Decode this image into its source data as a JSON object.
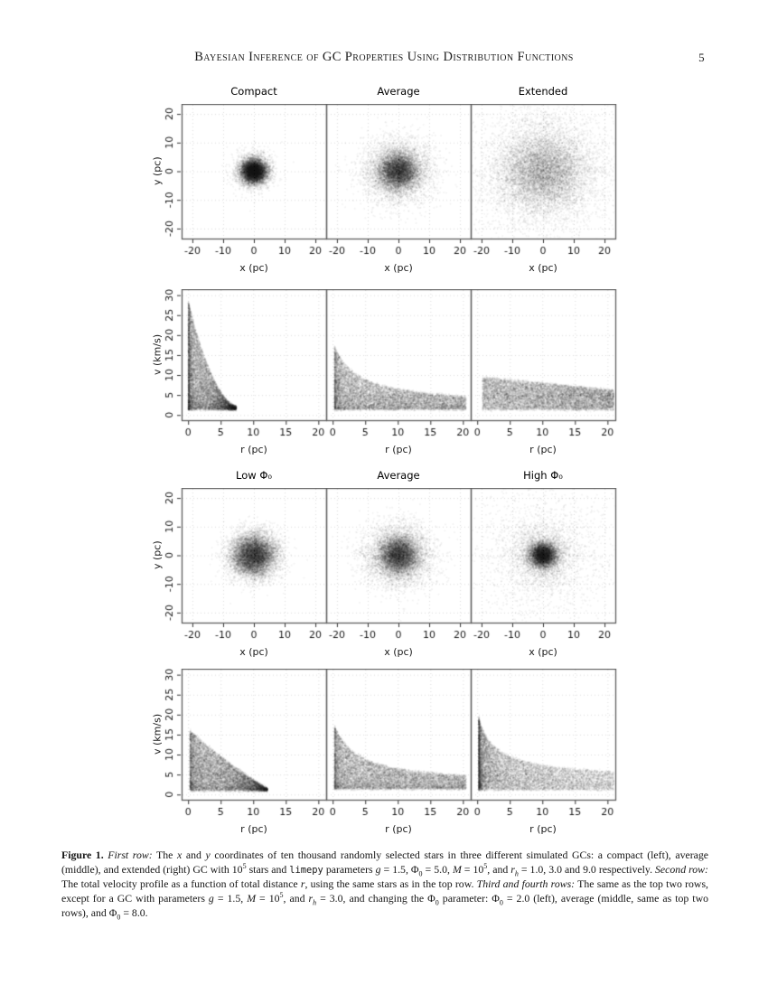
{
  "page": {
    "header": "Bayesian Inference of GC Properties Using Distribution Functions",
    "page_number": "5"
  },
  "colors": {
    "point_color": "#000000",
    "panel_border": "#5f5f5f",
    "grid": "#dcdcdc",
    "tick_text": "#191919"
  },
  "chart_data": [
    {
      "row": 1,
      "type": "scatter",
      "kind": "spatial",
      "titles": [
        "Compact",
        "Average",
        "Extended"
      ],
      "xlabel": "x (pc)",
      "ylabel": "y (pc)",
      "xlim": [
        -23.5,
        23.5
      ],
      "ylim": [
        -23.5,
        23.5
      ],
      "xticks": [
        -20,
        -10,
        0,
        10,
        20
      ],
      "yticks": [
        -20,
        -10,
        0,
        10,
        20
      ],
      "grid": true,
      "points_per_panel": 10000,
      "point_alpha": 0.05,
      "panels": [
        {
          "title": "Compact",
          "profile": {
            "sigmas": [
              1.9,
              3.0
            ],
            "weights": [
              0.75,
              0.25
            ]
          }
        },
        {
          "title": "Average",
          "profile": {
            "sigmas": [
              3.2,
              5.8
            ],
            "weights": [
              0.65,
              0.35
            ]
          }
        },
        {
          "title": "Extended",
          "profile": {
            "sigmas": [
              6.5,
              11.5
            ],
            "weights": [
              0.6,
              0.4
            ]
          }
        }
      ]
    },
    {
      "row": 2,
      "type": "scatter",
      "kind": "velocity",
      "titles": null,
      "xlabel": "r (pc)",
      "ylabel": "v (km/s)",
      "xlim": [
        -1.0,
        21.2
      ],
      "ylim": [
        -1.3,
        31.5
      ],
      "xticks": [
        0,
        5,
        10,
        15,
        20
      ],
      "yticks": [
        0,
        5,
        10,
        15,
        20,
        25,
        30
      ],
      "grid": true,
      "points_per_panel": 10000,
      "point_alpha": 0.05,
      "panels": [
        {
          "title": "Compact",
          "profile": {
            "env": "trunc",
            "vmax": 28.5,
            "vmin": 2.0,
            "rt": 7.8,
            "rmin": 0.05,
            "rmax": 7.4,
            "r_pow": 2.0,
            "env_pow": 1.9,
            "v_pow": 1.25,
            "vfloor": 1.4
          }
        },
        {
          "title": "Average",
          "profile": {
            "env": "hyper",
            "vmax": 18.5,
            "vmin": 2.4,
            "scale": 3.4,
            "rmin": 0.3,
            "rmax": 20.5,
            "r_pow": 1.7,
            "hp": 1.0,
            "v_pow": 1.2,
            "vfloor": 1.4
          }
        },
        {
          "title": "Extended",
          "profile": {
            "env": "trunc",
            "vmax": 9.6,
            "vmin": 1.8,
            "rt": 48.0,
            "rmin": 0.8,
            "rmax": 21.0,
            "r_pow": 1.05,
            "env_pow": 1.0,
            "v_pow": 1.0,
            "vfloor": 1.3
          }
        }
      ]
    },
    {
      "row": 3,
      "type": "scatter",
      "kind": "spatial",
      "titles": [
        "Low Φ₀",
        "Average",
        "High Φ₀"
      ],
      "xlabel": "x (pc)",
      "ylabel": "y (pc)",
      "xlim": [
        -23.5,
        23.5
      ],
      "ylim": [
        -23.5,
        23.5
      ],
      "xticks": [
        -20,
        -10,
        0,
        10,
        20
      ],
      "yticks": [
        -20,
        -10,
        0,
        10,
        20
      ],
      "grid": true,
      "points_per_panel": 10000,
      "point_alpha": 0.05,
      "panels": [
        {
          "title": "Low Φ₀",
          "profile": {
            "sigmas": [
              3.4,
              4.4
            ],
            "weights": [
              0.7,
              0.3
            ]
          }
        },
        {
          "title": "Average",
          "profile": {
            "sigmas": [
              3.2,
              5.8
            ],
            "weights": [
              0.65,
              0.35
            ]
          }
        },
        {
          "title": "High Φ₀",
          "profile": {
            "sigmas": [
              2.1,
              4.8,
              11.5
            ],
            "weights": [
              0.62,
              0.22,
              0.16
            ]
          }
        }
      ]
    },
    {
      "row": 4,
      "type": "scatter",
      "kind": "velocity",
      "titles": null,
      "xlabel": "r (pc)",
      "ylabel": "v (km/s)",
      "xlim": [
        -1.0,
        21.2
      ],
      "ylim": [
        -1.3,
        31.5
      ],
      "xticks": [
        0,
        5,
        10,
        15,
        20
      ],
      "yticks": [
        0,
        5,
        10,
        15,
        20,
        25,
        30
      ],
      "grid": true,
      "points_per_panel": 10000,
      "point_alpha": 0.05,
      "panels": [
        {
          "title": "Low Φ₀",
          "profile": {
            "env": "trunc",
            "vmax": 16.3,
            "vmin": 1.2,
            "rt": 12.6,
            "rmin": 0.3,
            "rmax": 12.2,
            "r_pow": 1.5,
            "env_pow": 1.15,
            "v_pow": 1.15,
            "vfloor": 1.0
          }
        },
        {
          "title": "Average",
          "profile": {
            "env": "hyper",
            "vmax": 18.5,
            "vmin": 2.4,
            "scale": 3.4,
            "rmin": 0.3,
            "rmax": 20.5,
            "r_pow": 1.7,
            "hp": 1.0,
            "v_pow": 1.2,
            "vfloor": 1.4
          }
        },
        {
          "title": "High Φ₀",
          "profile": {
            "env": "hyper",
            "vmax": 21.0,
            "vmin": 3.2,
            "scale": 1.7,
            "rmin": 0.25,
            "rmax": 21.0,
            "r_pow": 2.4,
            "hp": 0.75,
            "v_pow": 1.1,
            "vfloor": 1.2
          }
        }
      ]
    }
  ],
  "figure_caption": {
    "segments": [
      {
        "t": "Figure 1.",
        "s": "b"
      },
      {
        "t": "  ",
        "s": "n"
      },
      {
        "t": "First row:",
        "s": "i"
      },
      {
        "t": " The ",
        "s": "n"
      },
      {
        "t": "x",
        "s": "i"
      },
      {
        "t": " and ",
        "s": "n"
      },
      {
        "t": "y",
        "s": "i"
      },
      {
        "t": " coordinates of ten thousand randomly selected stars in three different simulated GCs: a compact (left), average (middle), and extended (right) GC with 10",
        "s": "n"
      },
      {
        "t": "5",
        "s": "sup"
      },
      {
        "t": " stars and ",
        "s": "n"
      },
      {
        "t": "limepy",
        "s": "m"
      },
      {
        "t": " parameters ",
        "s": "n"
      },
      {
        "t": "g",
        "s": "i"
      },
      {
        "t": " = 1.5, Φ",
        "s": "n"
      },
      {
        "t": "0",
        "s": "sub"
      },
      {
        "t": " = 5.0, ",
        "s": "n"
      },
      {
        "t": "M",
        "s": "i"
      },
      {
        "t": " = 10",
        "s": "n"
      },
      {
        "t": "5",
        "s": "sup"
      },
      {
        "t": ", and ",
        "s": "n"
      },
      {
        "t": "r",
        "s": "i"
      },
      {
        "t": "h",
        "s": "isub"
      },
      {
        "t": " = 1.0, 3.0 and 9.0 respectively. ",
        "s": "n"
      },
      {
        "t": "Second row:",
        "s": "i"
      },
      {
        "t": " The total velocity profile as a function of total distance ",
        "s": "n"
      },
      {
        "t": "r",
        "s": "i"
      },
      {
        "t": ", using the same stars as in the top row. ",
        "s": "n"
      },
      {
        "t": "Third and fourth rows:",
        "s": "i"
      },
      {
        "t": " The same as the top two rows, except for a GC with parameters ",
        "s": "n"
      },
      {
        "t": "g",
        "s": "i"
      },
      {
        "t": " = 1.5, ",
        "s": "n"
      },
      {
        "t": "M",
        "s": "i"
      },
      {
        "t": " = 10",
        "s": "n"
      },
      {
        "t": "5",
        "s": "sup"
      },
      {
        "t": ", and ",
        "s": "n"
      },
      {
        "t": "r",
        "s": "i"
      },
      {
        "t": "h",
        "s": "isub"
      },
      {
        "t": " = 3.0, and changing the Φ",
        "s": "n"
      },
      {
        "t": "0",
        "s": "sub"
      },
      {
        "t": " parameter: Φ",
        "s": "n"
      },
      {
        "t": "0",
        "s": "sub"
      },
      {
        "t": " = 2.0 (left), average (middle, same as top two rows), and Φ",
        "s": "n"
      },
      {
        "t": "0",
        "s": "sub"
      },
      {
        "t": " = 8.0.",
        "s": "n"
      }
    ]
  }
}
